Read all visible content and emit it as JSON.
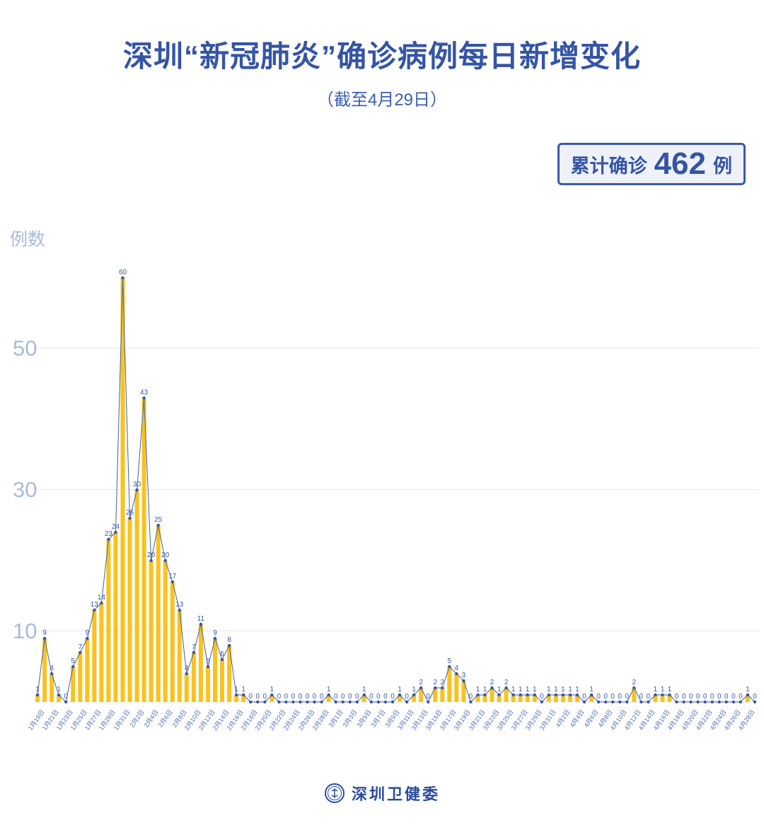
{
  "header": {
    "title": "深圳“新冠肺炎”确诊病例每日新增变化",
    "subtitle": "（截至4月29日）",
    "badge": {
      "prefix": "累计确诊",
      "value": "462",
      "suffix": "例"
    }
  },
  "colors": {
    "accent_blue": "#3554a5",
    "axis_light_blue": "#a9bbd9",
    "bar_yellow": "#fbc21d",
    "line_blue": "#44609f",
    "dot_blue": "#3a57a7",
    "grid_gray": "#e7e7e7",
    "badge_bg": "#eef1f8"
  },
  "chart_data": {
    "type": "bar",
    "overlay": "line",
    "title": "深圳“新冠肺炎”确诊病例每日新增变化",
    "subtitle": "（截至4月29日）",
    "xlabel": "",
    "ylabel": "例数",
    "yticks": [
      10,
      30,
      50
    ],
    "ylim": [
      0,
      62
    ],
    "grid": true,
    "legend": false,
    "x_label_every": 2,
    "bar_color": "#fbc21d",
    "line_color": "#44609f",
    "dot_color": "#3a57a7",
    "cumulative_total": 462,
    "categories": [
      "1月19日",
      "1月20日",
      "1月21日",
      "1月22日",
      "1月23日",
      "1月24日",
      "1月25日",
      "1月26日",
      "1月27日",
      "1月28日",
      "1月29日",
      "1月30日",
      "1月31日",
      "2月1日",
      "2月2日",
      "2月3日",
      "2月4日",
      "2月5日",
      "2月6日",
      "2月7日",
      "2月8日",
      "2月9日",
      "2月10日",
      "2月11日",
      "2月12日",
      "2月13日",
      "2月14日",
      "2月15日",
      "2月16日",
      "2月17日",
      "2月18日",
      "2月19日",
      "2月20日",
      "2月21日",
      "2月22日",
      "2月23日",
      "2月24日",
      "2月25日",
      "2月26日",
      "2月27日",
      "2月28日",
      "2月29日",
      "3月1日",
      "3月2日",
      "3月3日",
      "3月4日",
      "3月5日",
      "3月6日",
      "3月7日",
      "3月8日",
      "3月9日",
      "3月10日",
      "3月11日",
      "3月12日",
      "3月13日",
      "3月14日",
      "3月15日",
      "3月16日",
      "3月17日",
      "3月18日",
      "3月19日",
      "3月20日",
      "3月21日",
      "3月22日",
      "3月23日",
      "3月24日",
      "3月25日",
      "3月26日",
      "3月27日",
      "3月28日",
      "3月29日",
      "3月30日",
      "3月31日",
      "4月1日",
      "4月2日",
      "4月3日",
      "4月4日",
      "4月5日",
      "4月6日",
      "4月7日",
      "4月8日",
      "4月9日",
      "4月10日",
      "4月11日",
      "4月12日",
      "4月13日",
      "4月14日",
      "4月15日",
      "4月16日",
      "4月17日",
      "4月18日",
      "4月19日",
      "4月20日",
      "4月21日",
      "4月22日",
      "4月23日",
      "4月24日",
      "4月25日",
      "4月26日",
      "4月27日",
      "4月28日",
      "4月29日"
    ],
    "values": [
      1,
      9,
      4,
      1,
      0,
      5,
      7,
      9,
      13,
      14,
      23,
      24,
      60,
      26,
      30,
      43,
      20,
      25,
      20,
      17,
      13,
      4,
      7,
      11,
      5,
      9,
      6,
      8,
      1,
      1,
      0,
      0,
      0,
      1,
      0,
      0,
      0,
      0,
      0,
      0,
      0,
      1,
      0,
      0,
      0,
      0,
      1,
      0,
      0,
      0,
      0,
      1,
      0,
      1,
      2,
      0,
      2,
      2,
      5,
      4,
      3,
      0,
      1,
      1,
      2,
      1,
      2,
      1,
      1,
      1,
      1,
      0,
      1,
      1,
      1,
      1,
      1,
      0,
      1,
      0,
      0,
      0,
      0,
      0,
      2,
      0,
      0,
      1,
      1,
      1,
      0,
      0,
      0,
      0,
      0,
      0,
      0,
      0,
      0,
      0,
      1,
      0
    ]
  },
  "footer": {
    "brand": "深圳卫健委",
    "logo": "shenzhen-health-commission-logo"
  }
}
